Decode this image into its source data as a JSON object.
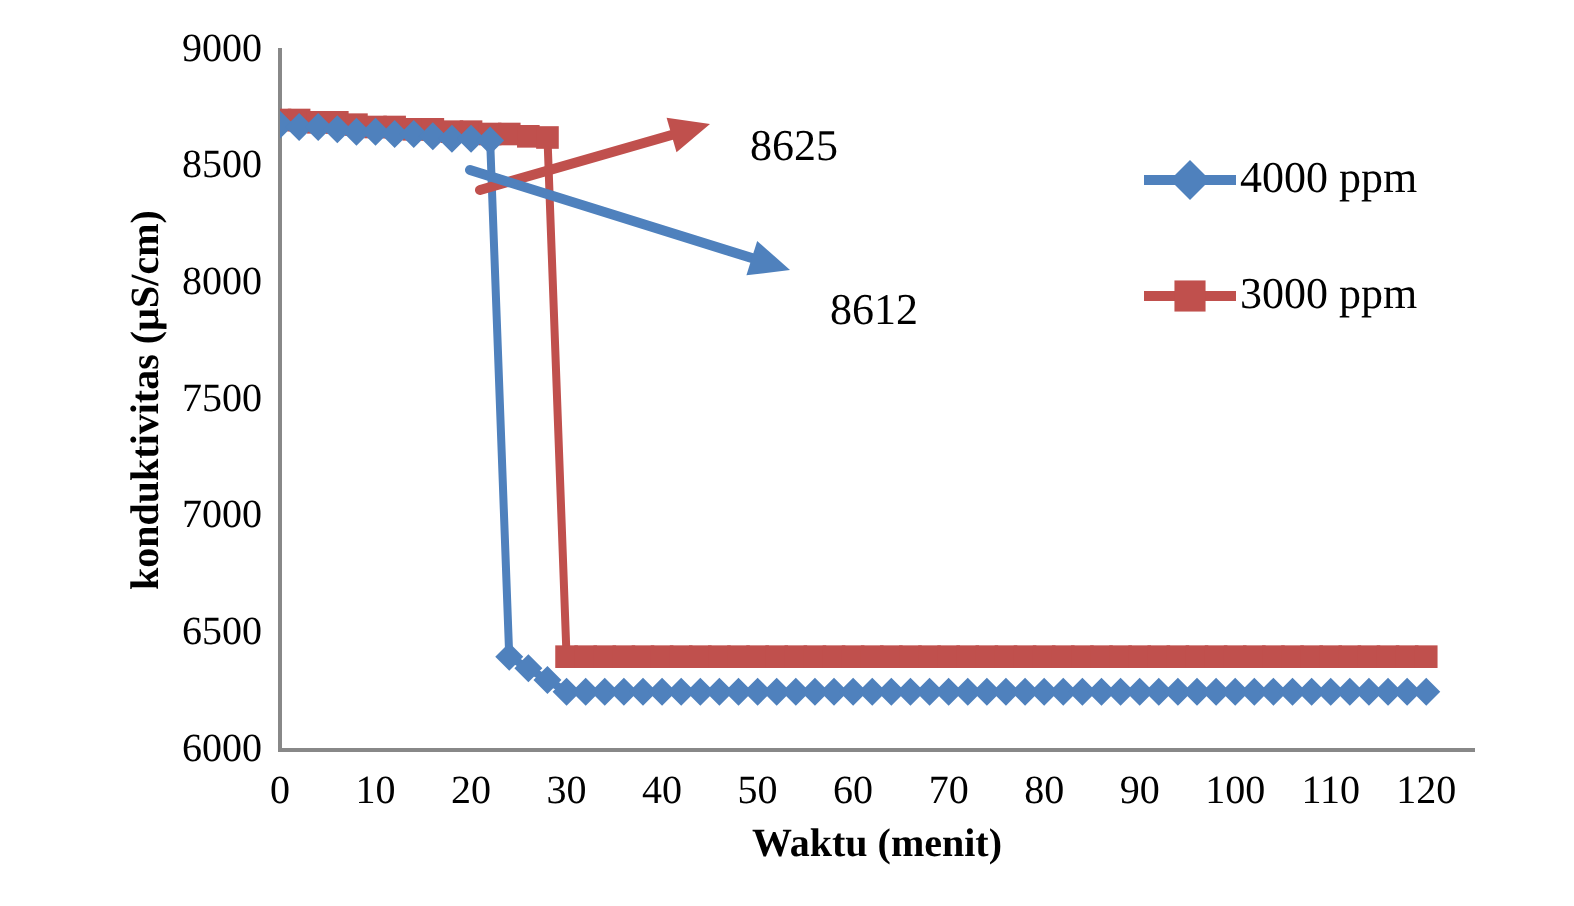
{
  "chart_data": {
    "type": "line",
    "xlabel": "Waktu (menit)",
    "ylabel": "konduktivitas (µS/cm)",
    "x": [
      0,
      2,
      4,
      6,
      8,
      10,
      12,
      14,
      16,
      18,
      20,
      22,
      24,
      26,
      28,
      30,
      32,
      34,
      36,
      38,
      40,
      42,
      44,
      46,
      48,
      50,
      52,
      54,
      56,
      58,
      60,
      62,
      64,
      66,
      68,
      70,
      72,
      74,
      76,
      78,
      80,
      82,
      84,
      86,
      88,
      90,
      92,
      94,
      96,
      98,
      100,
      102,
      104,
      106,
      108,
      110,
      112,
      114,
      116,
      118,
      120
    ],
    "series": [
      {
        "name": "4000 ppm",
        "color": "#4f81bd",
        "marker": "diamond",
        "values": [
          8680,
          8670,
          8670,
          8660,
          8650,
          8650,
          8640,
          8640,
          8630,
          8620,
          8620,
          8612,
          6400,
          6350,
          6300,
          6250,
          6250,
          6250,
          6250,
          6250,
          6250,
          6250,
          6250,
          6250,
          6250,
          6250,
          6250,
          6250,
          6250,
          6250,
          6250,
          6250,
          6250,
          6250,
          6250,
          6250,
          6250,
          6250,
          6250,
          6250,
          6250,
          6250,
          6250,
          6250,
          6250,
          6250,
          6250,
          6250,
          6250,
          6250,
          6250,
          6250,
          6250,
          6250,
          6250,
          6250,
          6250,
          6250,
          6250,
          6250,
          6250
        ]
      },
      {
        "name": "3000 ppm",
        "color": "#c0504d",
        "marker": "square",
        "values": [
          8700,
          8700,
          8690,
          8690,
          8680,
          8670,
          8670,
          8660,
          8660,
          8650,
          8650,
          8640,
          8640,
          8630,
          8625,
          6400,
          6400,
          6400,
          6400,
          6400,
          6400,
          6400,
          6400,
          6400,
          6400,
          6400,
          6400,
          6400,
          6400,
          6400,
          6400,
          6400,
          6400,
          6400,
          6400,
          6400,
          6400,
          6400,
          6400,
          6400,
          6400,
          6400,
          6400,
          6400,
          6400,
          6400,
          6400,
          6400,
          6400,
          6400,
          6400,
          6400,
          6400,
          6400,
          6400,
          6400,
          6400,
          6400,
          6400,
          6400,
          6400
        ]
      }
    ],
    "xlim": [
      0,
      125
    ],
    "xticks": [
      0,
      10,
      20,
      30,
      40,
      50,
      60,
      70,
      80,
      90,
      100,
      110,
      120
    ],
    "ylim": [
      6000,
      9000
    ],
    "yticks": [
      6000,
      6500,
      7000,
      7500,
      8000,
      8500,
      9000
    ],
    "grid": false,
    "legend": "right",
    "line_style": "solid",
    "annotations": [
      "8625",
      "8612"
    ]
  }
}
